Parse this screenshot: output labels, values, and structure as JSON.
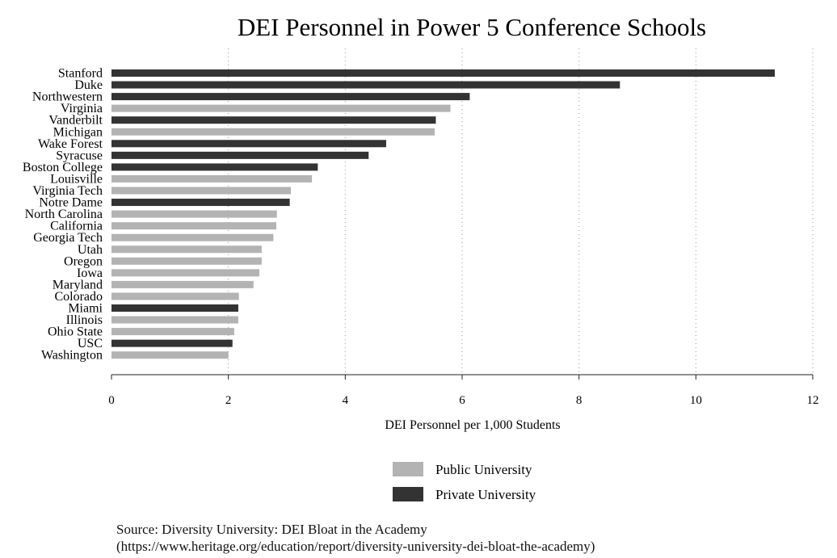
{
  "chart_data": {
    "type": "bar",
    "orientation": "horizontal",
    "title": "DEI Personnel in Power 5 Conference Schools",
    "xlabel": "DEI Personnel per 1,000 Students",
    "ylabel": "",
    "xlim": [
      0,
      12
    ],
    "xticks": [
      0,
      2,
      4,
      6,
      8,
      10,
      12
    ],
    "grid": true,
    "categories": [
      "Stanford",
      "Duke",
      "Northwestern",
      "Virginia",
      "Vanderbilt",
      "Michigan",
      "Wake Forest",
      "Syracuse",
      "Boston College",
      "Louisville",
      "Virginia Tech",
      "Notre Dame",
      "North Carolina",
      "California",
      "Georgia Tech",
      "Utah",
      "Oregon",
      "Iowa",
      "Maryland",
      "Colorado",
      "Miami",
      "Illinois",
      "Ohio State",
      "USC",
      "Washington"
    ],
    "values": [
      11.35,
      8.7,
      6.13,
      5.8,
      5.55,
      5.53,
      4.7,
      4.4,
      3.53,
      3.43,
      3.07,
      3.05,
      2.83,
      2.82,
      2.77,
      2.57,
      2.57,
      2.53,
      2.43,
      2.18,
      2.17,
      2.17,
      2.1,
      2.07,
      2.0
    ],
    "types": [
      "Private",
      "Private",
      "Private",
      "Public",
      "Private",
      "Public",
      "Private",
      "Private",
      "Private",
      "Public",
      "Public",
      "Private",
      "Public",
      "Public",
      "Public",
      "Public",
      "Public",
      "Public",
      "Public",
      "Public",
      "Private",
      "Public",
      "Public",
      "Private",
      "Public"
    ],
    "legend": [
      {
        "key": "Public",
        "label": "Public University",
        "color": "#b3b3b3"
      },
      {
        "key": "Private",
        "label": "Private University",
        "color": "#333333"
      }
    ],
    "legend_position": "bottom-center"
  },
  "source": {
    "line1": "Source: Diversity University: DEI Bloat in the Academy",
    "line2": "(https://www.heritage.org/education/report/diversity-university-dei-bloat-the-academy)"
  }
}
